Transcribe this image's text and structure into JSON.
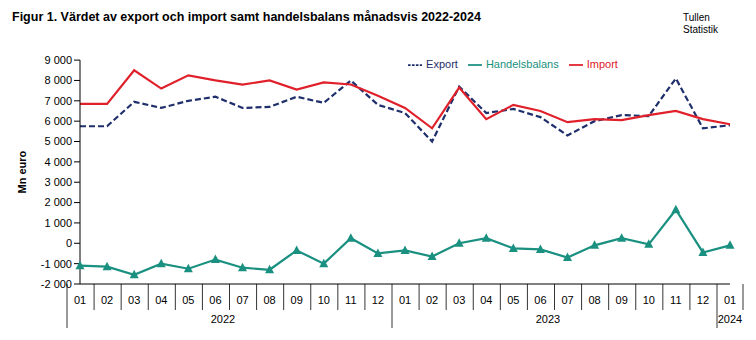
{
  "chart_data": {
    "type": "line",
    "title": "Figur 1. Värdet av export och import samt handelsbalans månadsvis 2022-2024",
    "source": "Tullen\nStatistik",
    "y_label": "Mn euro",
    "categories": [
      "01",
      "02",
      "03",
      "04",
      "05",
      "06",
      "07",
      "08",
      "09",
      "10",
      "11",
      "12",
      "01",
      "02",
      "03",
      "04",
      "05",
      "06",
      "07",
      "08",
      "09",
      "10",
      "11",
      "12",
      "01"
    ],
    "x_groups": [
      {
        "label": "2022",
        "count": 12
      },
      {
        "label": "2023",
        "count": 12
      },
      {
        "label": "2024",
        "count": 1
      }
    ],
    "series": [
      {
        "name": "Export",
        "color": "#1f2f6b",
        "line_style": "dashed",
        "marker": "none",
        "values": [
          5750,
          5750,
          6950,
          6650,
          7000,
          7200,
          6650,
          6700,
          7200,
          6900,
          8000,
          6800,
          6400,
          5000,
          7700,
          6400,
          6600,
          6200,
          5300,
          6000,
          6300,
          6250,
          8100,
          5650,
          5800
        ]
      },
      {
        "name": "Import",
        "color": "#e0202a",
        "line_style": "solid",
        "marker": "none",
        "values": [
          6850,
          6850,
          8500,
          7600,
          8250,
          8000,
          7800,
          8000,
          7550,
          7900,
          7800,
          7250,
          6650,
          5650,
          7650,
          6100,
          6800,
          6500,
          5950,
          6100,
          6050,
          6300,
          6500,
          6100,
          5850
        ]
      },
      {
        "name": "Handelsbalans",
        "color": "#1a9080",
        "line_style": "solid",
        "marker": "triangle",
        "values": [
          -1100,
          -1150,
          -1550,
          -1000,
          -1250,
          -800,
          -1200,
          -1300,
          -350,
          -1000,
          250,
          -500,
          -350,
          -650,
          0,
          250,
          -250,
          -300,
          -700,
          -100,
          250,
          -50,
          1650,
          -450,
          -100
        ]
      }
    ],
    "ylim": [
      -2000,
      9000
    ],
    "yticks": [
      {
        "value": -2000,
        "label": "-2 000"
      },
      {
        "value": -1000,
        "label": "-1 000"
      },
      0,
      {
        "value": 1000,
        "label": "1 000"
      },
      {
        "value": 2000,
        "label": "2 000"
      },
      {
        "value": 3000,
        "label": "3 000"
      },
      {
        "value": 4000,
        "label": "4 000"
      },
      {
        "value": 5000,
        "label": "5 000"
      },
      {
        "value": 6000,
        "label": "6 000"
      },
      {
        "value": 7000,
        "label": "7 000"
      },
      {
        "value": 8000,
        "label": "8 000"
      },
      {
        "value": 9000,
        "label": "9 000"
      }
    ],
    "grid": false,
    "legend": "top"
  }
}
